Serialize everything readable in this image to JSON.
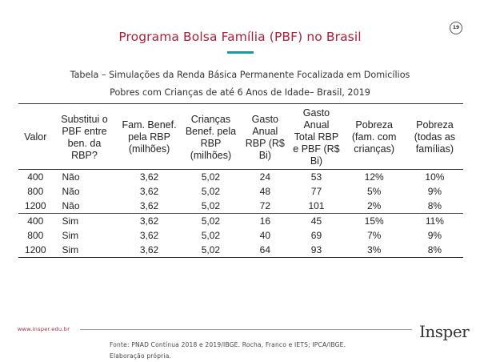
{
  "slide": {
    "title": "Programa Bolsa Família (PBF) no Brasil",
    "page_number": "19",
    "subtitle_line1": "Tabela – Simulações da Renda Básica Permanente Focalizada em Domicílios",
    "subtitle_line2": "Pobres com Crianças de até 6 Anos de Idade– Brasil, 2019"
  },
  "table": {
    "headers": [
      "Valor",
      "Substitui o PBF entre ben. da RBP?",
      "Fam. Benef. pela RBP (milhões)",
      "Crianças Benef. pela RBP (milhões)",
      "Gasto Anual RBP (R$ Bi)",
      "Gasto Anual Total RBP e PBF (R$ Bi)",
      "Pobreza (fam. com crianças)",
      "Pobreza (todas as famílias)"
    ],
    "rows": [
      [
        "400",
        "Não",
        "3,62",
        "5,02",
        "24",
        "53",
        "12%",
        "10%"
      ],
      [
        "800",
        "Não",
        "3,62",
        "5,02",
        "48",
        "77",
        "5%",
        "9%"
      ],
      [
        "1200",
        "Não",
        "3,62",
        "5,02",
        "72",
        "101",
        "2%",
        "8%"
      ],
      [
        "400",
        "Sim",
        "3,62",
        "5,02",
        "16",
        "45",
        "15%",
        "11%"
      ],
      [
        "800",
        "Sim",
        "3,62",
        "5,02",
        "40",
        "69",
        "7%",
        "9%"
      ],
      [
        "1200",
        "Sim",
        "3,62",
        "5,02",
        "64",
        "93",
        "3%",
        "8%"
      ]
    ]
  },
  "footer": {
    "url": "www.insper.edu.br",
    "source_line1": "Fonte: PNAD Contínua 2018 e 2019/IBGE. Rocha, Franco e IETS; IPCA/IBGE.",
    "source_line2": "Elaboração própria.",
    "logo": "Insper"
  },
  "colors": {
    "title": "#a8213a",
    "accent_rule": "#1a9ba0",
    "url": "#a8213a"
  }
}
